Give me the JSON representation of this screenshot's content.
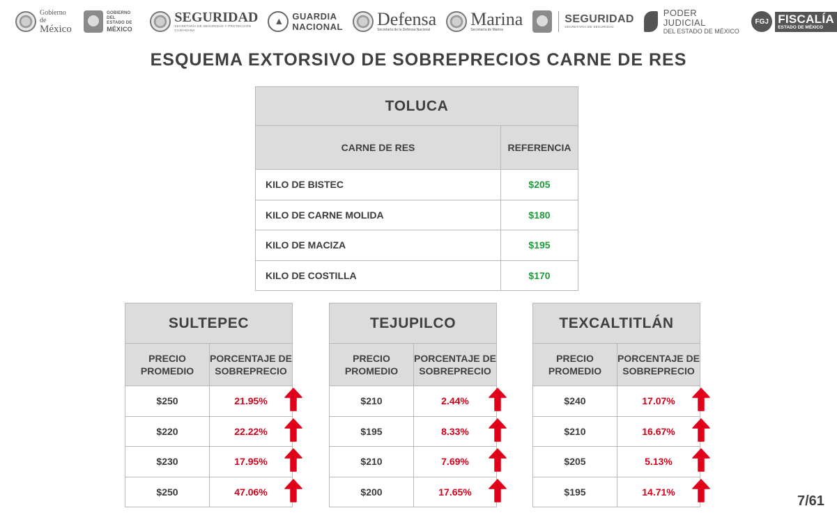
{
  "header_logos": [
    {
      "name": "gobierno-mexico",
      "line1": "Gobierno de",
      "line2": "México"
    },
    {
      "name": "gobierno-edomex",
      "line1": "GOBIERNO DEL",
      "line2": "ESTADO DE",
      "line3": "MÉXICO"
    },
    {
      "name": "seguridad-sspc",
      "main": "SEGURIDAD",
      "sub": "SECRETARÍA DE SEGURIDAD Y PROTECCIÓN CIUDADANA"
    },
    {
      "name": "guardia-nacional",
      "line1": "GUARDIA",
      "line2": "NACIONAL"
    },
    {
      "name": "defensa",
      "main": "Defensa",
      "sub": "Secretaría de la Defensa Nacional"
    },
    {
      "name": "marina",
      "main": "Marina",
      "sub": "Secretaría de Marina"
    },
    {
      "name": "seguridad-edomex",
      "main": "SEGURIDAD",
      "sub": "SECRETARÍA DE SEGURIDAD"
    },
    {
      "name": "poder-judicial",
      "line1": "PODER JUDICIAL",
      "line2": "DEL ESTADO DE MÉXICO"
    },
    {
      "name": "fiscalia",
      "badge": "FGJ",
      "main": "FISCALÍA",
      "sub": "ESTADO DE MÉXICO"
    }
  ],
  "title": "ESQUEMA EXTORSIVO DE SOBREPRECIOS CARNE DE RES",
  "reference_table": {
    "city": "TOLUCA",
    "col1": "CARNE DE RES",
    "col2": "REFERENCIA",
    "rows": [
      {
        "item": "KILO DE BISTEC",
        "price": "$205"
      },
      {
        "item": "KILO DE CARNE MOLIDA",
        "price": "$180"
      },
      {
        "item": "KILO DE MACIZA",
        "price": "$195"
      },
      {
        "item": "KILO DE COSTILLA",
        "price": "$170"
      }
    ]
  },
  "municipality_tables": [
    {
      "city": "SULTEPEC",
      "col1": "PRECIO PROMEDIO",
      "col2": "PORCENTAJE DE SOBREPRECIO",
      "rows": [
        {
          "price": "$250",
          "pct": "21.95%"
        },
        {
          "price": "$220",
          "pct": "22.22%"
        },
        {
          "price": "$230",
          "pct": "17.95%"
        },
        {
          "price": "$250",
          "pct": "47.06%"
        }
      ]
    },
    {
      "city": "TEJUPILCO",
      "col1": "PRECIO PROMEDIO",
      "col2": "PORCENTAJE DE SOBREPRECIO",
      "rows": [
        {
          "price": "$210",
          "pct": "2.44%"
        },
        {
          "price": "$195",
          "pct": "8.33%"
        },
        {
          "price": "$210",
          "pct": "7.69%"
        },
        {
          "price": "$200",
          "pct": "17.65%"
        }
      ]
    },
    {
      "city": "TEXCALTITLÁN",
      "col1": "PRECIO PROMEDIO",
      "col2": "PORCENTAJE DE SOBREPRECIO",
      "rows": [
        {
          "price": "$240",
          "pct": "17.07%"
        },
        {
          "price": "$210",
          "pct": "16.67%"
        },
        {
          "price": "$205",
          "pct": "5.13%"
        },
        {
          "price": "$195",
          "pct": "14.71%"
        }
      ]
    }
  ],
  "icons": {
    "increase": "red-up-arrow-icon"
  },
  "colors": {
    "reference_price": "#1f9a3a",
    "percentage": "#d0021b",
    "arrow": "#e0001a",
    "header_fill": "#dcdcdc"
  },
  "page_number": "7/61"
}
